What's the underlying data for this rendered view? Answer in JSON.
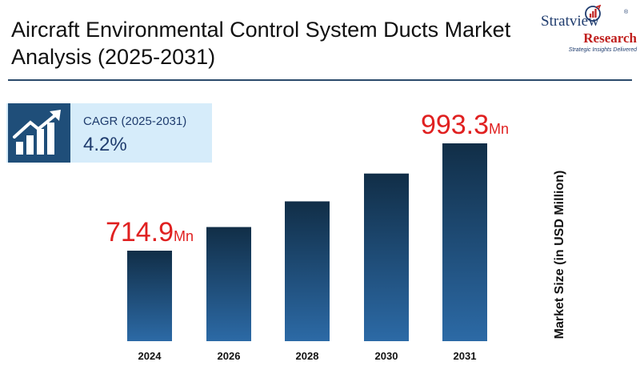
{
  "header": {
    "title": "Aircraft Environmental Control System Ducts Market Analysis (2025-2031)"
  },
  "logo": {
    "brand_line1": "Stratview",
    "registered": "®",
    "brand_line2": "Research",
    "tagline": "Strategic Insights Delivered"
  },
  "cagr_box": {
    "label": "CAGR (2025-2031)",
    "value": "4.2%",
    "icon": "growth-chart-icon"
  },
  "colors": {
    "bar_top": "#112e47",
    "bar_bottom": "#2c6aa6",
    "highlight_text": "#e02020",
    "accent": "#1f4e79"
  },
  "chart_data": {
    "type": "bar",
    "categories": [
      "2024",
      "2026",
      "2028",
      "2030",
      "2031"
    ],
    "values": [
      714.9,
      776.2,
      842.8,
      915.0,
      993.3
    ],
    "ylabel": "Market Size (in USD Million)",
    "ylim": [
      500,
      1000
    ],
    "grid": false,
    "annotations": [
      {
        "category": "2024",
        "value": "714.9",
        "unit": "Mn"
      },
      {
        "category": "2031",
        "value": "993.3",
        "unit": "Mn"
      }
    ]
  }
}
